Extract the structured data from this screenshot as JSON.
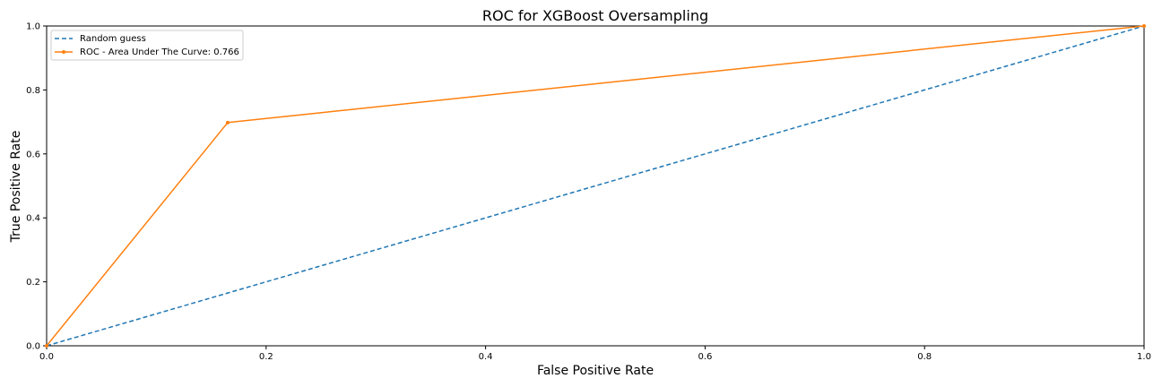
{
  "chart_data": {
    "type": "line",
    "title": "ROC for XGBoost Oversampling",
    "xlabel": "False Positive Rate",
    "ylabel": "True Positive Rate",
    "xlim": [
      0,
      1
    ],
    "ylim": [
      0,
      1
    ],
    "xticks": [
      0,
      0.2,
      0.4,
      0.6,
      0.8,
      1.0
    ],
    "yticks": [
      0,
      0.2,
      0.4,
      0.6,
      0.8,
      1.0
    ],
    "xtick_labels": [
      "0.0",
      "0.2",
      "0.4",
      "0.6",
      "0.8",
      "1.0"
    ],
    "ytick_labels": [
      "0.0",
      "0.2",
      "0.4",
      "0.6",
      "0.8",
      "1.0"
    ],
    "grid": false,
    "legend_position": "top-left",
    "series": [
      {
        "name": "Random guess",
        "style": "dashed",
        "color": "#1f77b4",
        "x": [
          0,
          1
        ],
        "y": [
          0,
          1
        ],
        "markers": false
      },
      {
        "name": "ROC - Area Under The Curve: 0.766",
        "style": "solid",
        "color": "#ff7f0e",
        "x": [
          0,
          0.165,
          1
        ],
        "y": [
          0,
          0.698,
          1
        ],
        "markers": true
      }
    ]
  }
}
